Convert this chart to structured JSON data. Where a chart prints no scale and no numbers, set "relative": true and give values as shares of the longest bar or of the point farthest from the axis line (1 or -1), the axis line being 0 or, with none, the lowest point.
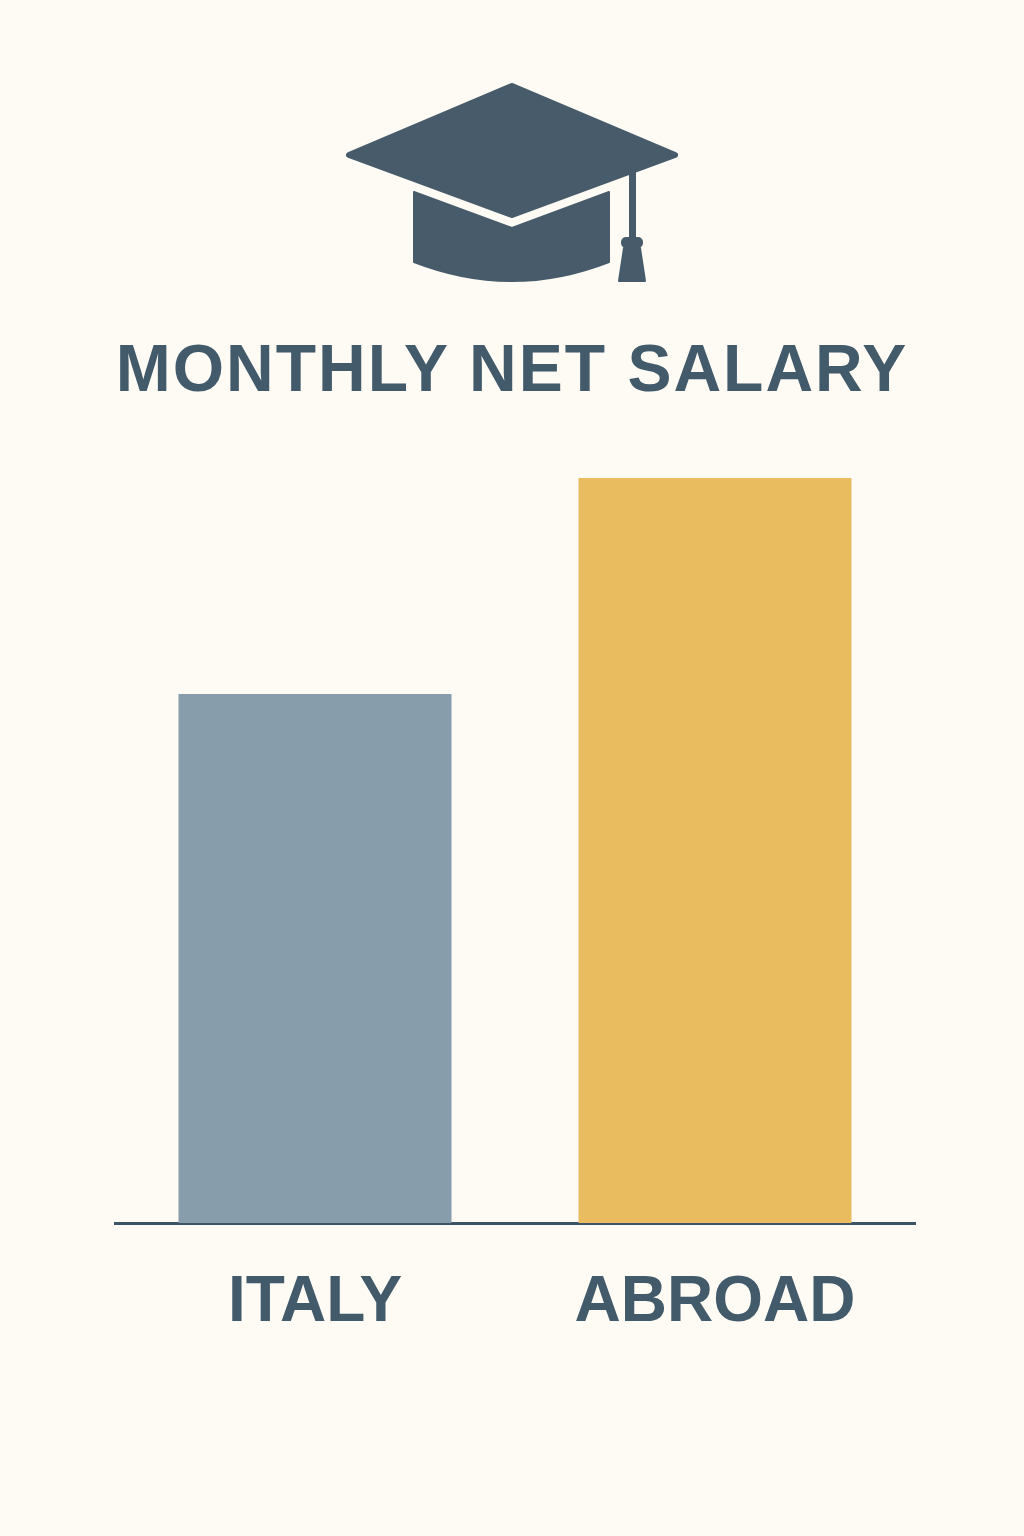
{
  "chart_data": {
    "type": "bar",
    "title": "MONTHLY NET SALARY",
    "categories": [
      "ITALY",
      "ABROAD"
    ],
    "values": [
      0.71,
      1
    ],
    "colors": [
      "#889dab",
      "#e8bc5f"
    ],
    "relative": true
  }
}
